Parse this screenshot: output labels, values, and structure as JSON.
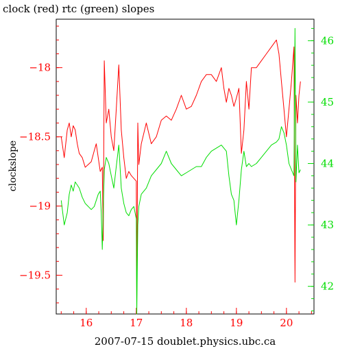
{
  "chart_data": {
    "type": "line",
    "title": "clock (red) rtc (green) slopes",
    "xlabel": "2007-07-15 doublet.physics.ubc.ca",
    "ylabel": "clockslope",
    "xlim": [
      15.4,
      20.55
    ],
    "ylim": [
      -19.78,
      -17.65
    ],
    "y2lim": [
      41.55,
      46.35
    ],
    "x_ticks": [
      16,
      17,
      18,
      19,
      20
    ],
    "y_ticks": [
      -19.5,
      -19,
      -18.5,
      -18
    ],
    "y2_ticks": [
      42,
      43,
      44,
      45,
      46
    ],
    "x_tick_labels": [
      "16",
      "17",
      "18",
      "19",
      "20"
    ],
    "y_tick_labels": [
      "−19.5",
      "−19",
      "−18.5",
      "−18"
    ],
    "y2_tick_labels": [
      "42",
      "43",
      "44",
      "45",
      "46"
    ],
    "colors": {
      "axis": "#ff0000",
      "y2axis": "#00dd00",
      "frame": "#000000"
    },
    "series": [
      {
        "color": "#ff0000",
        "axis": "left",
        "x": [
          15.5,
          15.56,
          15.62,
          15.66,
          15.7,
          15.74,
          15.78,
          15.82,
          15.86,
          15.92,
          15.98,
          16.04,
          16.1,
          16.16,
          16.2,
          16.24,
          16.28,
          16.32,
          16.34,
          16.36,
          16.4,
          16.45,
          16.5,
          16.55,
          16.6,
          16.65,
          16.7,
          16.75,
          16.8,
          16.85,
          16.9,
          16.95,
          17.0,
          17.01,
          17.03,
          17.05,
          17.1,
          17.2,
          17.3,
          17.4,
          17.5,
          17.6,
          17.7,
          17.8,
          17.9,
          18.0,
          18.1,
          18.2,
          18.3,
          18.4,
          18.5,
          18.6,
          18.7,
          18.75,
          18.8,
          18.85,
          18.9,
          18.95,
          19.0,
          19.05,
          19.1,
          19.15,
          19.2,
          19.25,
          19.3,
          19.4,
          19.5,
          19.6,
          19.7,
          19.8,
          19.85,
          19.9,
          19.95,
          20.0,
          20.05,
          20.1,
          20.15,
          20.17,
          20.19,
          20.22,
          20.25,
          20.28
        ],
        "y": [
          -18.5,
          -18.65,
          -18.45,
          -18.4,
          -18.5,
          -18.42,
          -18.45,
          -18.55,
          -18.62,
          -18.65,
          -18.72,
          -18.7,
          -18.68,
          -18.6,
          -18.55,
          -18.65,
          -18.75,
          -18.72,
          -19.25,
          -17.95,
          -18.4,
          -18.3,
          -18.5,
          -18.6,
          -18.3,
          -17.98,
          -18.45,
          -18.65,
          -18.8,
          -18.75,
          -18.78,
          -18.8,
          -18.82,
          -19.7,
          -18.4,
          -18.7,
          -18.55,
          -18.4,
          -18.55,
          -18.5,
          -18.38,
          -18.35,
          -18.38,
          -18.3,
          -18.2,
          -18.3,
          -18.28,
          -18.2,
          -18.1,
          -18.05,
          -18.05,
          -18.1,
          -18.0,
          -18.15,
          -18.25,
          -18.15,
          -18.2,
          -18.28,
          -18.22,
          -18.15,
          -18.62,
          -18.45,
          -18.1,
          -18.3,
          -18.0,
          -18.0,
          -17.95,
          -17.9,
          -17.85,
          -17.8,
          -17.9,
          -18.1,
          -18.3,
          -18.5,
          -18.3,
          -18.1,
          -17.85,
          -19.55,
          -18.2,
          -18.4,
          -18.2,
          -18.1
        ]
      },
      {
        "color": "#00dd00",
        "axis": "right",
        "x": [
          15.5,
          15.56,
          15.62,
          15.66,
          15.7,
          15.74,
          15.78,
          15.82,
          15.86,
          15.92,
          15.98,
          16.04,
          16.1,
          16.16,
          16.2,
          16.24,
          16.28,
          16.3,
          16.32,
          16.36,
          16.4,
          16.45,
          16.5,
          16.55,
          16.6,
          16.65,
          16.7,
          16.75,
          16.8,
          16.85,
          16.9,
          16.95,
          17.0,
          17.01,
          17.03,
          17.05,
          17.1,
          17.2,
          17.3,
          17.4,
          17.5,
          17.6,
          17.7,
          17.8,
          17.9,
          18.0,
          18.1,
          18.2,
          18.3,
          18.4,
          18.5,
          18.6,
          18.7,
          18.8,
          18.85,
          18.9,
          18.95,
          19.0,
          19.05,
          19.1,
          19.15,
          19.2,
          19.25,
          19.3,
          19.4,
          19.5,
          19.6,
          19.7,
          19.8,
          19.85,
          19.9,
          19.95,
          20.0,
          20.05,
          20.1,
          20.15,
          20.17,
          20.19,
          20.22,
          20.25,
          20.28
        ],
        "y": [
          43.4,
          43.0,
          43.2,
          43.5,
          43.65,
          43.55,
          43.7,
          43.65,
          43.6,
          43.45,
          43.35,
          43.3,
          43.25,
          43.3,
          43.4,
          43.5,
          43.55,
          43.2,
          42.6,
          43.9,
          44.1,
          44.0,
          43.8,
          43.6,
          43.95,
          44.3,
          43.6,
          43.35,
          43.2,
          43.15,
          43.25,
          43.3,
          43.1,
          41.55,
          43.0,
          43.3,
          43.5,
          43.6,
          43.8,
          43.9,
          44.0,
          44.2,
          44.0,
          43.9,
          43.8,
          43.85,
          43.9,
          43.95,
          43.95,
          44.1,
          44.2,
          44.25,
          44.3,
          44.2,
          43.8,
          43.5,
          43.4,
          43.0,
          43.4,
          43.9,
          44.2,
          43.95,
          44.0,
          43.95,
          44.0,
          44.1,
          44.2,
          44.3,
          44.35,
          44.4,
          44.6,
          44.5,
          44.3,
          44.0,
          43.9,
          43.8,
          46.2,
          43.7,
          44.3,
          43.85,
          43.9
        ]
      }
    ]
  }
}
